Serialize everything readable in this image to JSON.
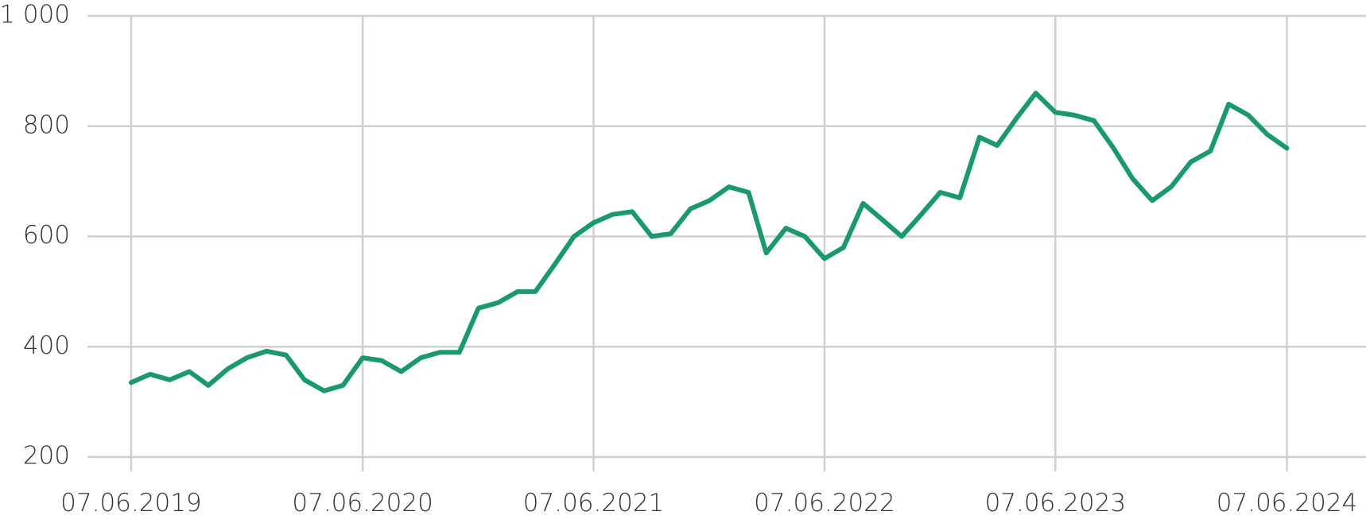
{
  "chart_data": {
    "type": "line",
    "x": [
      "07.06.2019",
      "07.07.2019",
      "07.08.2019",
      "07.09.2019",
      "07.10.2019",
      "07.11.2019",
      "07.12.2019",
      "07.01.2020",
      "07.02.2020",
      "07.03.2020",
      "07.04.2020",
      "07.05.2020",
      "07.06.2020",
      "07.07.2020",
      "07.08.2020",
      "07.09.2020",
      "07.10.2020",
      "07.11.2020",
      "07.12.2020",
      "07.01.2021",
      "07.02.2021",
      "07.03.2021",
      "07.04.2021",
      "07.05.2021",
      "07.06.2021",
      "07.07.2021",
      "07.08.2021",
      "07.09.2021",
      "07.10.2021",
      "07.11.2021",
      "07.12.2021",
      "07.01.2022",
      "07.02.2022",
      "07.03.2022",
      "07.04.2022",
      "07.05.2022",
      "07.06.2022",
      "07.07.2022",
      "07.08.2022",
      "07.09.2022",
      "07.10.2022",
      "07.11.2022",
      "07.12.2022",
      "07.01.2023",
      "07.02.2023",
      "07.03.2023",
      "07.04.2023",
      "07.05.2023",
      "07.06.2023",
      "07.07.2023",
      "07.08.2023",
      "07.09.2023",
      "07.10.2023",
      "07.11.2023",
      "07.12.2023",
      "07.01.2024",
      "07.02.2024",
      "07.03.2024",
      "07.04.2024",
      "07.05.2024",
      "07.06.2024"
    ],
    "series": [
      {
        "color": "#1a9a6c",
        "values": [
          335,
          350,
          340,
          355,
          330,
          360,
          380,
          392,
          385,
          340,
          320,
          330,
          380,
          375,
          355,
          380,
          390,
          390,
          470,
          480,
          500,
          500,
          550,
          600,
          625,
          640,
          645,
          600,
          605,
          650,
          665,
          690,
          680,
          570,
          615,
          600,
          560,
          580,
          660,
          630,
          600,
          640,
          680,
          670,
          780,
          765,
          815,
          860,
          825,
          820,
          810,
          760,
          705,
          665,
          690,
          735,
          755,
          840,
          820,
          785,
          760
        ]
      }
    ],
    "xlim": [
      "30.03.2019",
      "10.10.2024"
    ],
    "xticks": [
      "07.06.2019",
      "07.06.2020",
      "07.06.2021",
      "07.06.2022",
      "07.06.2023",
      "07.06.2024"
    ],
    "ylim": [
      200,
      1000
    ],
    "yticks": [
      200,
      400,
      600,
      800,
      {
        "value": 1000,
        "label": "1 000"
      }
    ],
    "grid": true
  }
}
